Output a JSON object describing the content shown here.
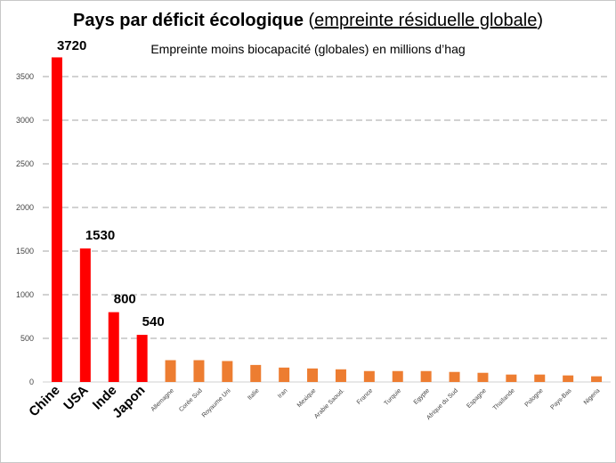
{
  "title": {
    "main": "Pays par déficit écologique",
    "sub": "empreinte résiduelle globale"
  },
  "subtitle": "Empreinte moins biocapacité (globales) en millions d’hag",
  "chart_data": {
    "type": "bar",
    "title": "Pays par déficit écologique (empreinte résiduelle globale)",
    "subtitle": "Empreinte moins biocapacité (globales) en millions d’hag",
    "xlabel": "",
    "ylabel": "",
    "ylim": [
      0,
      3500
    ],
    "yticks": [
      0,
      500,
      1000,
      1500,
      2000,
      2500,
      3000,
      3500
    ],
    "grid": true,
    "legend": "none",
    "categories": [
      "Chine",
      "USA",
      "Inde",
      "Japon",
      "Allemagne",
      "Corée Sud",
      "Royaume Uni",
      "Italie",
      "Iran",
      "Mexique",
      "Arabie Saoud.",
      "France",
      "Turquie",
      "Egypte",
      "Afrique du Sud",
      "Espagne",
      "Thaïlande",
      "Pologne",
      "Pays-Bas",
      "Nigeria"
    ],
    "values": [
      3720,
      1530,
      800,
      540,
      250,
      250,
      240,
      195,
      165,
      155,
      145,
      125,
      125,
      125,
      115,
      105,
      85,
      85,
      75,
      65
    ],
    "labels": [
      "3720",
      "1530",
      "800",
      "540"
    ],
    "colors": {
      "highlight": "#ff0000",
      "other": "#ed7d31",
      "grid": "#a6a6a6"
    }
  }
}
